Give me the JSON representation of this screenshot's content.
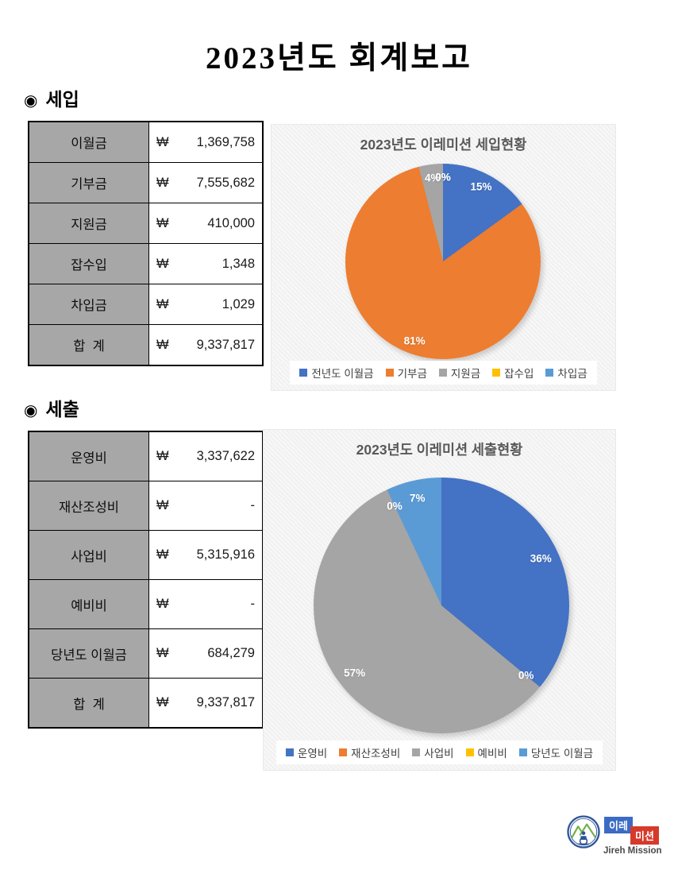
{
  "page_title": "2023년도 회계보고",
  "sections": [
    {
      "bullet": "◉",
      "heading": "세입",
      "table": {
        "currency_symbol": "₩",
        "rows": [
          {
            "label": "이월금",
            "value": "1,369,758"
          },
          {
            "label": "기부금",
            "value": "7,555,682"
          },
          {
            "label": "지원금",
            "value": "410,000"
          },
          {
            "label": "잡수입",
            "value": "1,348"
          },
          {
            "label": "차입금",
            "value": "1,029"
          },
          {
            "label": "합  계",
            "value": "9,337,817"
          }
        ]
      }
    },
    {
      "bullet": "◉",
      "heading": "세출",
      "table": {
        "currency_symbol": "₩",
        "rows": [
          {
            "label": "운영비",
            "value": "3,337,622"
          },
          {
            "label": "재산조성비",
            "value": "-"
          },
          {
            "label": "사업비",
            "value": "5,315,916"
          },
          {
            "label": "예비비",
            "value": "-"
          },
          {
            "label": "당년도 이월금",
            "value": "684,279"
          },
          {
            "label": "합  계",
            "value": "9,337,817"
          }
        ]
      }
    }
  ],
  "chart_data": [
    {
      "type": "pie",
      "title": "2023년도 이레미션 세입현황",
      "categories": [
        "전년도 이월금",
        "기부금",
        "지원금",
        "잡수입",
        "차입금"
      ],
      "values": [
        15,
        81,
        4,
        0,
        0
      ],
      "data_labels": [
        "15%",
        "81%",
        "4%",
        "0%",
        "0%"
      ],
      "colors": [
        "#4472C4",
        "#ED7D31",
        "#A5A5A5",
        "#FFC000",
        "#5B9BD5"
      ],
      "legend_position": "bottom"
    },
    {
      "type": "pie",
      "title": "2023년도 이레미션 세출현황",
      "categories": [
        "운영비",
        "재산조성비",
        "사업비",
        "예비비",
        "당년도 이월금"
      ],
      "values": [
        36,
        0,
        57,
        0,
        7
      ],
      "data_labels": [
        "36%",
        "0%",
        "57%",
        "0%",
        "7%"
      ],
      "colors": [
        "#4472C4",
        "#ED7D31",
        "#A5A5A5",
        "#FFC000",
        "#5B9BD5"
      ],
      "legend_position": "bottom"
    }
  ],
  "logo": {
    "korean_top": "이레",
    "korean_bottom": "미션",
    "english": "Jireh Mission",
    "colors": {
      "blue_box": "#3C6BC5",
      "red_box": "#D63A2B",
      "emblem_blue": "#2E5597",
      "emblem_green": "#6FAE44"
    }
  }
}
